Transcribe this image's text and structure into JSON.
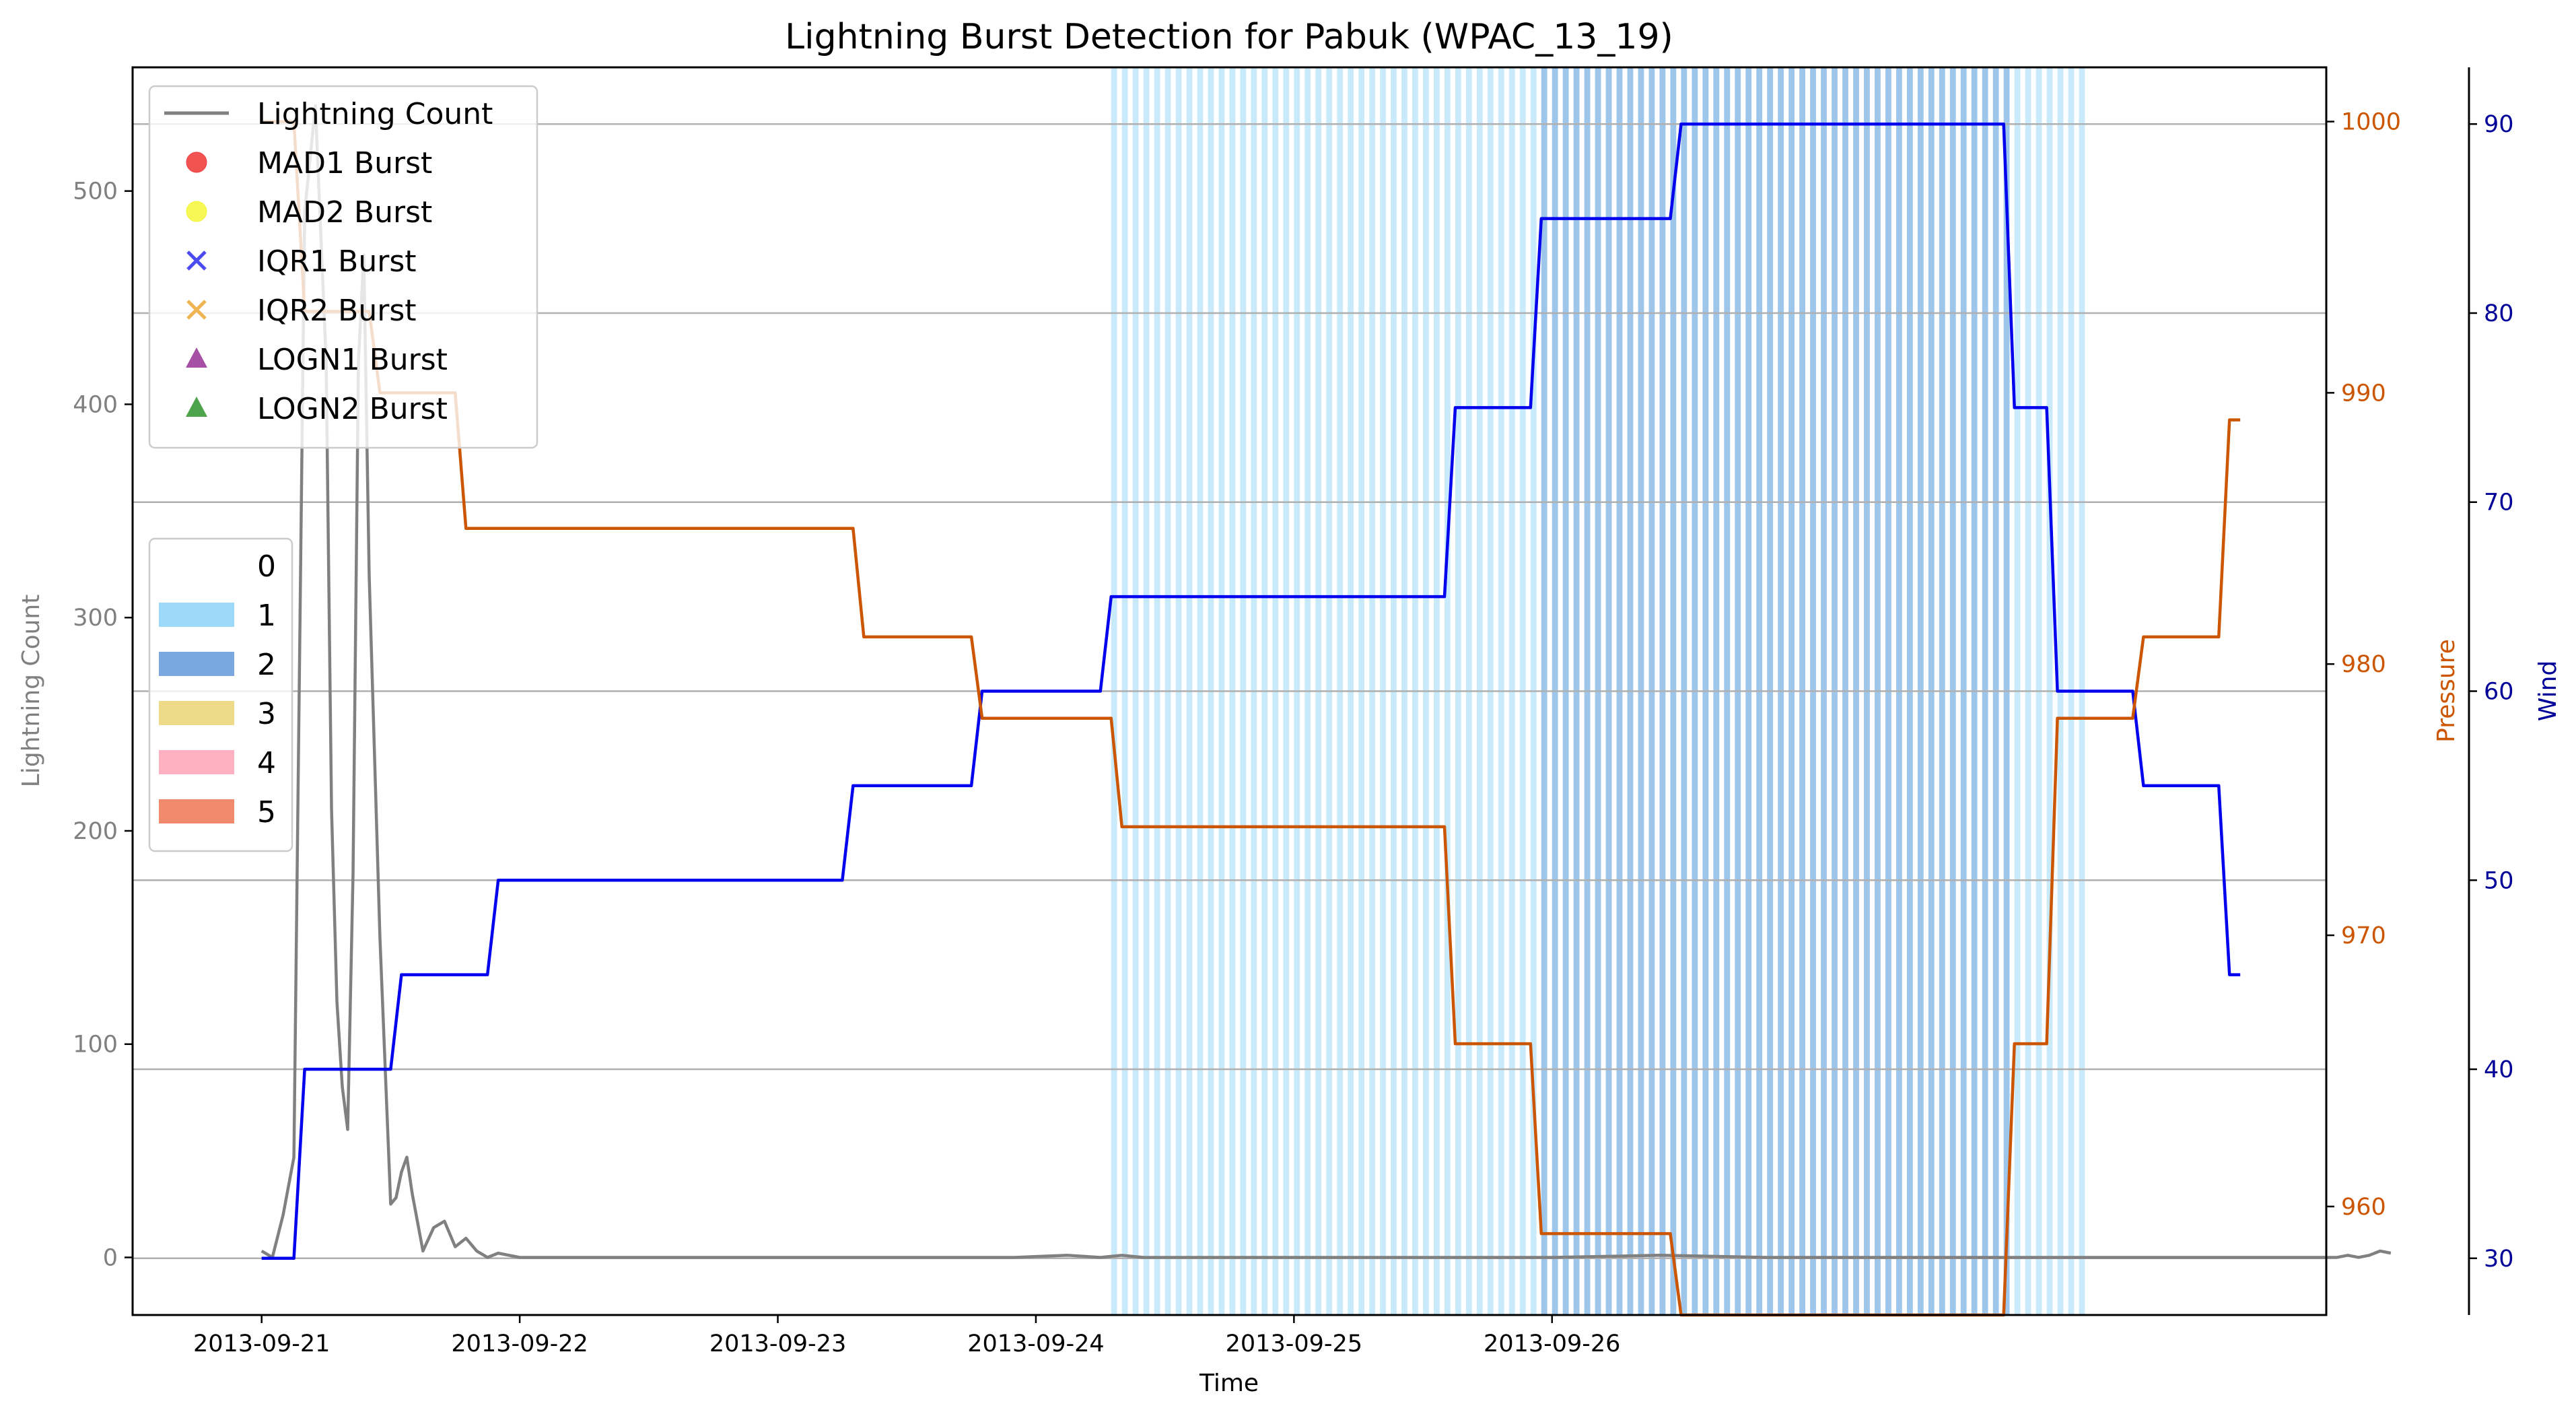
{
  "chart_data": {
    "type": "line",
    "title": "Lightning Burst Detection for Pabuk (WPAC_13_19)",
    "xlabel": "Time",
    "ylabel_left": "Lightning Count",
    "ylabel_pressure": "Pressure",
    "ylabel_wind": "Wind",
    "x_ticks": [
      "2013-09-21",
      "2013-09-22",
      "2013-09-23",
      "2013-09-24",
      "2013-09-25",
      "2013-09-26"
    ],
    "xlim_hours": [
      -12,
      192
    ],
    "ylim_left": [
      -27,
      558
    ],
    "yticks_left": [
      0,
      100,
      200,
      300,
      400,
      500
    ],
    "ylim_pressure": [
      956,
      1002
    ],
    "yticks_pressure": [
      960,
      970,
      980,
      990,
      1000
    ],
    "ylim_wind": [
      27,
      93
    ],
    "yticks_wind": [
      30,
      40,
      50,
      60,
      70,
      80,
      90
    ],
    "grid": "horizontal",
    "colors": {
      "lightning": "#808080",
      "wind": "#0000ee",
      "pressure": "#cc5500",
      "pressure_axis": "#cc5500",
      "wind_axis": "#000099",
      "left_axis": "#808080",
      "grid": "#b0b0b0",
      "cat1": "#9dd9f8",
      "cat2": "#7aa8de",
      "cat3": "#eedb8a",
      "cat4": "#fdb1c1",
      "cat5": "#ef8a6d"
    },
    "series": [
      {
        "name": "Lightning Count",
        "color": "#808080",
        "x_hours": [
          0,
          1,
          2,
          3,
          4,
          5,
          6,
          6.5,
          7,
          7.5,
          8,
          8.5,
          9,
          9.5,
          10,
          11,
          12,
          12.5,
          13,
          13.5,
          14,
          15,
          16,
          17,
          18,
          19,
          20,
          21,
          22,
          24,
          30,
          40,
          50,
          60,
          70,
          75,
          78,
          80,
          82,
          84,
          90,
          100,
          110,
          120,
          130,
          140,
          160,
          170,
          180,
          188,
          189,
          190,
          191,
          192,
          193,
          194,
          195,
          196,
          197,
          198
        ],
        "values": [
          3,
          0,
          20,
          47,
          490,
          540,
          420,
          210,
          120,
          80,
          60,
          180,
          420,
          470,
          320,
          150,
          25,
          28,
          40,
          47,
          30,
          3,
          14,
          17,
          5,
          9,
          3,
          0,
          2,
          0,
          0,
          0,
          0,
          0,
          0,
          1,
          0,
          1,
          0,
          0,
          0,
          0,
          0,
          0,
          1,
          0,
          0,
          0,
          0,
          0,
          0,
          0,
          0,
          0,
          0,
          1,
          0,
          1,
          3,
          2
        ]
      },
      {
        "name": "Wind",
        "color": "#0000ee",
        "steps": [
          [
            0,
            30
          ],
          [
            3,
            30
          ],
          [
            4,
            40
          ],
          [
            12,
            40
          ],
          [
            13,
            45
          ],
          [
            21,
            45
          ],
          [
            22,
            50
          ],
          [
            54,
            50
          ],
          [
            55,
            55
          ],
          [
            66,
            55
          ],
          [
            67,
            60
          ],
          [
            78,
            60
          ],
          [
            79,
            65
          ],
          [
            110,
            65
          ],
          [
            111,
            75
          ],
          [
            118,
            75
          ],
          [
            119,
            85
          ],
          [
            131,
            85
          ],
          [
            132,
            90
          ],
          [
            162,
            90
          ],
          [
            163,
            75
          ],
          [
            166,
            75
          ],
          [
            167,
            60
          ],
          [
            174,
            60
          ],
          [
            175,
            55
          ],
          [
            182,
            55
          ],
          [
            183,
            45
          ],
          [
            184,
            45
          ]
        ]
      },
      {
        "name": "Pressure",
        "color": "#cc5500",
        "steps": [
          [
            0,
            1000
          ],
          [
            3,
            1000
          ],
          [
            4,
            993
          ],
          [
            10,
            993
          ],
          [
            11,
            990
          ],
          [
            18,
            990
          ],
          [
            19,
            985
          ],
          [
            55,
            985
          ],
          [
            56,
            981
          ],
          [
            66,
            981
          ],
          [
            67,
            978
          ],
          [
            79,
            978
          ],
          [
            80,
            974
          ],
          [
            110,
            974
          ],
          [
            111,
            966
          ],
          [
            118,
            966
          ],
          [
            119,
            959
          ],
          [
            131,
            959
          ],
          [
            132,
            956
          ],
          [
            162,
            956
          ],
          [
            163,
            966
          ],
          [
            166,
            966
          ],
          [
            167,
            978
          ],
          [
            174,
            978
          ],
          [
            175,
            981
          ],
          [
            182,
            981
          ],
          [
            183,
            989
          ],
          [
            184,
            989
          ]
        ]
      }
    ],
    "shaded_regions": [
      {
        "category": 1,
        "from_hours": 79,
        "to_hours": 170
      },
      {
        "category": 2,
        "from_hours": 119,
        "to_hours": 163
      }
    ],
    "legend_markers": {
      "placement": "upper-left",
      "items": [
        {
          "label": "Lightning Count",
          "marker": "line",
          "color": "#808080"
        },
        {
          "label": "MAD1 Burst",
          "marker": "circle",
          "color": "#f04040"
        },
        {
          "label": "MAD2 Burst",
          "marker": "circle",
          "color": "#f5f542"
        },
        {
          "label": "IQR1 Burst",
          "marker": "x",
          "color": "#4b4bee"
        },
        {
          "label": "IQR2 Burst",
          "marker": "x",
          "color": "#f0b450"
        },
        {
          "label": "LOGN1 Burst",
          "marker": "triangle",
          "color": "#9b3d9b"
        },
        {
          "label": "LOGN2 Burst",
          "marker": "triangle",
          "color": "#3a9a3a"
        }
      ]
    },
    "legend_categories": {
      "placement": "center-left",
      "items": [
        {
          "label": "0",
          "color": ""
        },
        {
          "label": "1",
          "color": "#9dd9f8"
        },
        {
          "label": "2",
          "color": "#7aa8de"
        },
        {
          "label": "3",
          "color": "#eedb8a"
        },
        {
          "label": "4",
          "color": "#fdb1c1"
        },
        {
          "label": "5",
          "color": "#ef8a6d"
        }
      ]
    }
  }
}
